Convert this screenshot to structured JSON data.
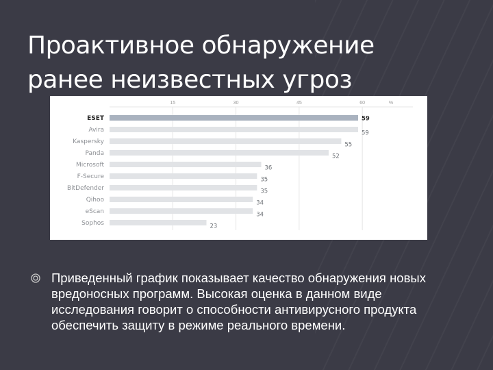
{
  "slide": {
    "title_line1": "Проактивное обнаружение",
    "title_line2": "ранее неизвестных угроз",
    "body": "Приведенный график показывает качество обнаружения новых вредоносных программ. Высокая оценка в данном виде исследования говорит о способности антивирусного продукта обеспечить защиту в режиме реального времени.",
    "bullet_icon": "circle-bullet-icon"
  },
  "chart_data": {
    "type": "bar",
    "orientation": "horizontal",
    "title": "",
    "xlabel": "",
    "ylabel": "",
    "categories": [
      "ESET",
      "Avira",
      "Kaspersky",
      "Panda",
      "Microsoft",
      "F-Secure",
      "BitDefender",
      "Qihoo",
      "eScan",
      "Sophos"
    ],
    "values": [
      59,
      59,
      55,
      52,
      36,
      35,
      35,
      34,
      34,
      23
    ],
    "highlight_category": "ESET",
    "axis_ticks": [
      "15",
      "30",
      "45",
      "60",
      "%"
    ],
    "tick_values": [
      15,
      30,
      45,
      60
    ],
    "xlim": [
      0,
      72
    ],
    "grid": true,
    "colors": {
      "bar": "#e1e3e6",
      "bar_highlight": "#a9b2bf",
      "label": "#8c8f94",
      "label_highlight": "#2b2b2b",
      "grid": "#e6e6e6"
    }
  }
}
